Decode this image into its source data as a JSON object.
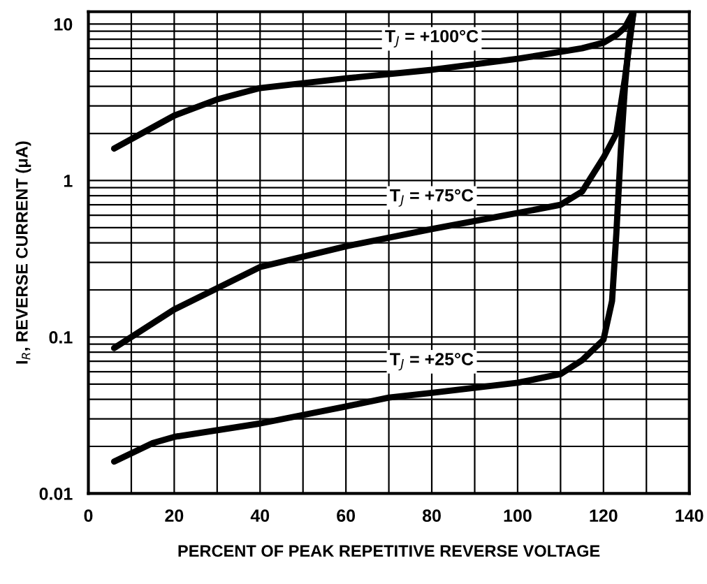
{
  "chart_data": {
    "type": "line",
    "xlabel": "PERCENT OF PEAK REPETITIVE REVERSE VOLTAGE",
    "ylabel": "I$_{R}$, REVERSE CURRENT (μA)",
    "log": "y",
    "grid": true,
    "legend": false,
    "marker": "none",
    "line_style": "solid",
    "xlim": [
      0,
      140
    ],
    "ylim": [
      0.01,
      12
    ],
    "xticks": [
      0,
      {
        "value": 10,
        "label": null
      },
      20,
      {
        "value": 30,
        "label": null
      },
      40,
      {
        "value": 50,
        "label": null
      },
      60,
      {
        "value": 70,
        "label": null
      },
      80,
      {
        "value": 90,
        "label": null
      },
      100,
      {
        "value": 110,
        "label": null
      },
      120,
      {
        "value": 130,
        "label": null
      },
      140
    ],
    "yticks": [
      0.01,
      {
        "value": 0.02,
        "label": null
      },
      {
        "value": 0.03,
        "label": null
      },
      {
        "value": 0.04,
        "label": null
      },
      {
        "value": 0.05,
        "label": null
      },
      {
        "value": 0.06,
        "label": null
      },
      {
        "value": 0.07,
        "label": null
      },
      {
        "value": 0.08,
        "label": null
      },
      {
        "value": 0.09,
        "label": null
      },
      0.1,
      {
        "value": 0.2,
        "label": null
      },
      {
        "value": 0.3,
        "label": null
      },
      {
        "value": 0.4,
        "label": null
      },
      {
        "value": 0.5,
        "label": null
      },
      {
        "value": 0.6,
        "label": null
      },
      {
        "value": 0.7,
        "label": null
      },
      {
        "value": 0.8,
        "label": null
      },
      {
        "value": 0.9,
        "label": null
      },
      1,
      {
        "value": 2,
        "label": null
      },
      {
        "value": 3,
        "label": null
      },
      {
        "value": 4,
        "label": null
      },
      {
        "value": 5,
        "label": null
      },
      {
        "value": 6,
        "label": null
      },
      {
        "value": 7,
        "label": null
      },
      {
        "value": 8,
        "label": null
      },
      {
        "value": 9,
        "label": null
      },
      10
    ],
    "series": [
      {
        "name": "T$_{J}$ = +100°C",
        "color": "#000000",
        "x": [
          6,
          20,
          30,
          40,
          60,
          80,
          100,
          115,
          120,
          123,
          125,
          127
        ],
        "values": [
          1.6,
          2.6,
          3.3,
          3.9,
          4.5,
          5.1,
          6.0,
          7.0,
          7.6,
          8.5,
          9.5,
          12
        ]
      },
      {
        "name": "T$_{J}$ = +75°C",
        "color": "#000000",
        "x": [
          6,
          20,
          40,
          60,
          80,
          100,
          110,
          115,
          120,
          123,
          125,
          127
        ],
        "values": [
          0.085,
          0.15,
          0.28,
          0.38,
          0.49,
          0.62,
          0.7,
          0.85,
          1.4,
          2.0,
          4.5,
          12
        ]
      },
      {
        "name": "T$_{J}$ = +25°C",
        "color": "#000000",
        "x": [
          6,
          15,
          20,
          40,
          60,
          70,
          80,
          100,
          110,
          115,
          120,
          122,
          123,
          124,
          125,
          126,
          127
        ],
        "values": [
          0.016,
          0.021,
          0.023,
          0.028,
          0.036,
          0.041,
          0.044,
          0.051,
          0.058,
          0.071,
          0.096,
          0.17,
          0.46,
          1.5,
          4,
          8,
          12
        ]
      }
    ]
  }
}
